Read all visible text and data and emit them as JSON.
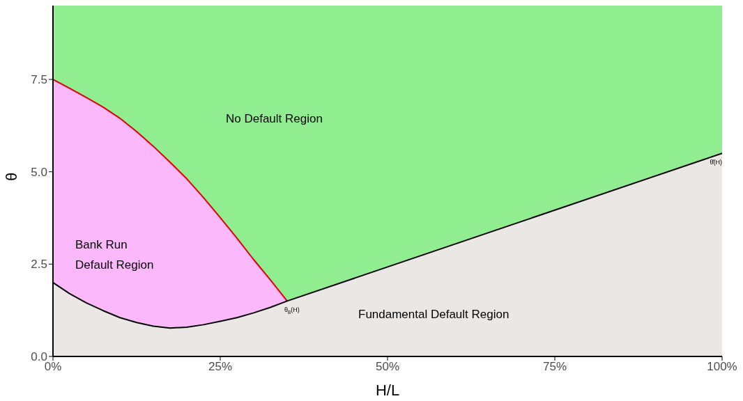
{
  "chart_data": {
    "type": "area",
    "xlabel": "H/L",
    "ylabel": "θ",
    "x": [
      0,
      0.025,
      0.05,
      0.075,
      0.1,
      0.125,
      0.15,
      0.175,
      0.2,
      0.225,
      0.25,
      0.275,
      0.3,
      0.325,
      0.35,
      1.0
    ],
    "series": [
      {
        "color": "#fbb9fb",
        "values": [
          7.5,
          7.26,
          7.01,
          6.75,
          6.45,
          6.09,
          5.69,
          5.26,
          4.81,
          4.3,
          3.76,
          3.2,
          2.62,
          2.07,
          1.5,
          null
        ]
      },
      {
        "color": "#ebe7e5",
        "values": [
          2.0,
          1.7,
          1.45,
          1.24,
          1.05,
          0.92,
          0.82,
          0.77,
          0.79,
          0.86,
          0.95,
          1.05,
          1.18,
          1.33,
          1.5,
          5.5
        ]
      }
    ],
    "bands": [
      {
        "axis": "y",
        "from": 0,
        "to": 9.5,
        "color": "#90ee90"
      }
    ],
    "annotations": [
      "No Default Region",
      "Bank Run",
      "Default Region",
      "Fundamental Default Region",
      {
        "text": "θ$_{B}$(H)",
        "x": 0.35,
        "y": 1.5
      },
      {
        "text": "θ̂(H)",
        "x": 1.0,
        "y": 5.5
      }
    ],
    "xlim": [
      0,
      1
    ],
    "xticks": [
      {
        "value": 0,
        "label": "0%"
      },
      {
        "value": 0.25,
        "label": "25%"
      },
      {
        "value": 0.5,
        "label": "50%"
      },
      {
        "value": 0.75,
        "label": "75%"
      },
      {
        "value": 1,
        "label": "100%"
      }
    ],
    "ylim": [
      0,
      9.5
    ],
    "yticks": [
      {
        "value": 0,
        "label": "0.0"
      },
      {
        "value": 2.5,
        "label": "2.5"
      },
      {
        "value": 5,
        "label": "5.0"
      },
      {
        "value": 7.5,
        "label": "7.5"
      }
    ],
    "grid": false,
    "legend": false
  }
}
